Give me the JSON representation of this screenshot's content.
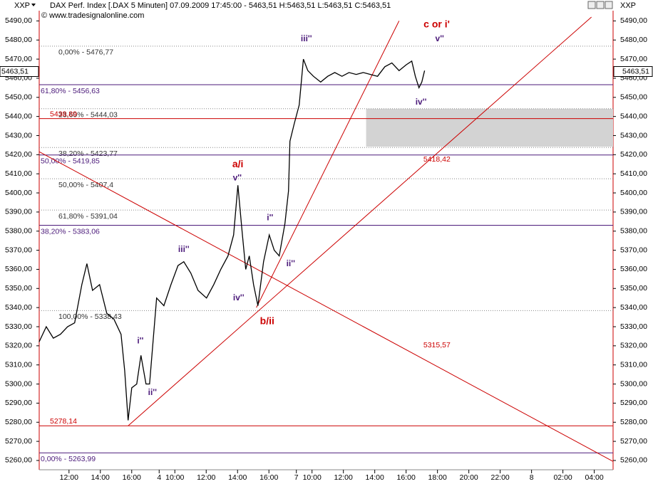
{
  "chart_data": {
    "type": "line",
    "symbol": "XXP",
    "title": "DAX Perf. Index [.DAX 5 Minuten] 07.09.2009 17:45:00 - 5463,51 H:5463,51 L:5463,51 C:5463,51",
    "subtitle": "© www.tradesignalonline.com",
    "last": {
      "value": 5463.51,
      "label": "5463,51"
    },
    "xlim": [
      10.1,
      46.7
    ],
    "ylim": [
      5257,
      5492
    ],
    "xticks": [
      {
        "value": 12,
        "label": "12:00"
      },
      {
        "value": 14,
        "label": "14:00"
      },
      {
        "value": 16,
        "label": "16:00"
      },
      {
        "value": 17.75,
        "label": "4"
      },
      {
        "value": 18.75,
        "label": "10:00"
      },
      {
        "value": 20.75,
        "label": "12:00"
      },
      {
        "value": 22.75,
        "label": "14:00"
      },
      {
        "value": 24.75,
        "label": "16:00"
      },
      {
        "value": 26.5,
        "label": "7"
      },
      {
        "value": 27.5,
        "label": "10:00"
      },
      {
        "value": 29.5,
        "label": "12:00"
      },
      {
        "value": 31.5,
        "label": "14:00"
      },
      {
        "value": 33.5,
        "label": "16:00"
      },
      {
        "value": 35.5,
        "label": "18:00"
      },
      {
        "value": 37.5,
        "label": "20:00"
      },
      {
        "value": 39.5,
        "label": "22:00"
      },
      {
        "value": 41.5,
        "label": "8"
      },
      {
        "value": 43.5,
        "label": "02:00"
      },
      {
        "value": 45.5,
        "label": "04:00"
      }
    ],
    "yticks": [
      {
        "value": 5490,
        "label": "5490,00"
      },
      {
        "value": 5480,
        "label": "5480,00"
      },
      {
        "value": 5470,
        "label": "5470,00"
      },
      {
        "value": 5460,
        "label": "5460,00"
      },
      {
        "value": 5450,
        "label": "5450,00"
      },
      {
        "value": 5440,
        "label": "5440,00"
      },
      {
        "value": 5430,
        "label": "5430,00"
      },
      {
        "value": 5420,
        "label": "5420,00"
      },
      {
        "value": 5410,
        "label": "5410,00"
      },
      {
        "value": 5400,
        "label": "5400,00"
      },
      {
        "value": 5390,
        "label": "5390,00"
      },
      {
        "value": 5380,
        "label": "5380,00"
      },
      {
        "value": 5370,
        "label": "5370,00"
      },
      {
        "value": 5360,
        "label": "5360,00"
      },
      {
        "value": 5350,
        "label": "5350,00"
      },
      {
        "value": 5340,
        "label": "5340,00"
      },
      {
        "value": 5330,
        "label": "5330,00"
      },
      {
        "value": 5320,
        "label": "5320,00"
      },
      {
        "value": 5310,
        "label": "5310,00"
      },
      {
        "value": 5300,
        "label": "5300,00"
      },
      {
        "value": 5290,
        "label": "5290,00"
      },
      {
        "value": 5280,
        "label": "5280,00"
      },
      {
        "value": 5270,
        "label": "5270,00"
      },
      {
        "value": 5260,
        "label": "5260,00"
      }
    ],
    "series": [
      {
        "name": "DAX",
        "color": "#000000",
        "x": [
          10.09,
          10.55,
          11.0,
          11.45,
          11.91,
          12.36,
          12.82,
          13.14,
          13.5,
          13.95,
          14.41,
          14.86,
          15.32,
          15.55,
          15.77,
          16.0,
          16.32,
          16.59,
          16.91,
          17.14,
          17.59,
          18.05,
          18.5,
          18.95,
          19.32,
          19.77,
          20.23,
          20.77,
          21.23,
          21.68,
          22.14,
          22.5,
          22.77,
          23.05,
          23.27,
          23.5,
          23.77,
          24.05,
          24.41,
          24.77,
          25.09,
          25.41,
          25.77,
          26.0,
          26.09,
          26.36,
          26.68,
          26.95,
          27.23,
          27.59,
          28.05,
          28.5,
          28.95,
          29.41,
          29.86,
          30.32,
          30.77,
          31.23,
          31.68,
          32.14,
          32.59,
          33.05,
          33.5,
          33.86,
          34.09,
          34.32,
          34.5,
          34.68
        ],
        "values": [
          5322,
          5330,
          5324,
          5326,
          5330,
          5332,
          5352,
          5363,
          5349,
          5352,
          5337,
          5334,
          5326,
          5307,
          5281,
          5298,
          5300,
          5315,
          5300,
          5300,
          5345,
          5341,
          5352,
          5362,
          5364,
          5358,
          5349,
          5345,
          5352,
          5360,
          5367,
          5378,
          5404,
          5379,
          5360,
          5367,
          5352,
          5341,
          5364,
          5378,
          5370,
          5367,
          5384,
          5401,
          5427,
          5436,
          5446,
          5470,
          5464,
          5461,
          5458,
          5461,
          5463,
          5461,
          5463,
          5462,
          5463,
          5462,
          5461,
          5466,
          5468,
          5464,
          5467,
          5469,
          5461,
          5455,
          5458,
          5464
        ]
      }
    ],
    "zone": {
      "color": "#d3d3d3",
      "x": [
        30.95,
        46.7
      ],
      "y": [
        5424.2,
        5444
      ]
    },
    "levels": [
      {
        "value": 5476.77,
        "label": "0,00% - 5476,77",
        "color": "#888888",
        "style": "dotted"
      },
      {
        "value": 5444.03,
        "label": "23,60% - 5444,03",
        "color": "#888888",
        "style": "dotted"
      },
      {
        "value": 5423.77,
        "label": "38,20% - 5423,77",
        "color": "#888888",
        "style": "dotted"
      },
      {
        "value": 5407.4,
        "label": "50,00% - 5407,4",
        "color": "#888888",
        "style": "dotted"
      },
      {
        "value": 5391.04,
        "label": "61,80% - 5391,04",
        "color": "#888888",
        "style": "dotted"
      },
      {
        "value": 5338.43,
        "label": "100,00% - 5338,43",
        "color": "#888888",
        "style": "dotted"
      },
      {
        "value": 5456.63,
        "label": "61,80% - 5456,63",
        "color": "#4b1a7a",
        "style": "solid"
      },
      {
        "value": 5419.85,
        "label": "50,00% - 5419,85",
        "color": "#4b1a7a",
        "style": "solid"
      },
      {
        "value": 5383.06,
        "label": "38,20% - 5383,06",
        "color": "#4b1a7a",
        "style": "solid"
      },
      {
        "value": 5263.99,
        "label": "0,00% - 5263,99",
        "color": "#4b1a7a",
        "style": "solid"
      },
      {
        "value": 5438.89,
        "label": "5438,89",
        "color": "#cc0000",
        "style": "solid"
      },
      {
        "value": 5278.14,
        "label": "5278,14",
        "color": "#cc0000",
        "style": "solid"
      }
    ],
    "trendlines": [
      {
        "color": "#cc0000",
        "x": [
          15.77,
          45.32
        ],
        "y": [
          5278.14,
          5492
        ]
      },
      {
        "color": "#cc0000",
        "x": [
          23.95,
          33.05
        ],
        "y": [
          5340,
          5490
        ]
      },
      {
        "color": "#cc0000",
        "x": [
          10.09,
          46.68
        ],
        "y": [
          5421.6,
          5259.6
        ]
      }
    ],
    "trend_labels": [
      {
        "text": "5418,42",
        "x": 34.6,
        "y": 5417.5,
        "color": "#cc0000"
      },
      {
        "text": "5315,57",
        "x": 34.6,
        "y": 5320.3,
        "color": "#cc0000"
      }
    ],
    "waves": [
      {
        "text": "c or i'",
        "x": 35.45,
        "y": 5488,
        "color": "#cc0000"
      },
      {
        "text": "v''",
        "x": 35.64,
        "y": 5480.6,
        "color": "#4b1a7a"
      },
      {
        "text": "iii''",
        "x": 27.14,
        "y": 5480.6,
        "color": "#4b1a7a"
      },
      {
        "text": "iv''",
        "x": 34.45,
        "y": 5447.4,
        "color": "#4b1a7a"
      },
      {
        "text": "a/i",
        "x": 22.77,
        "y": 5414.8,
        "color": "#cc0000"
      },
      {
        "text": "v''",
        "x": 22.73,
        "y": 5407.7,
        "color": "#4b1a7a"
      },
      {
        "text": "i''",
        "x": 24.82,
        "y": 5386.8,
        "color": "#4b1a7a"
      },
      {
        "text": "iii''",
        "x": 19.32,
        "y": 5370.3,
        "color": "#4b1a7a"
      },
      {
        "text": "ii''",
        "x": 26.14,
        "y": 5362.8,
        "color": "#4b1a7a"
      },
      {
        "text": "iv''",
        "x": 22.82,
        "y": 5344.9,
        "color": "#4b1a7a"
      },
      {
        "text": "b/ii",
        "x": 24.64,
        "y": 5332.6,
        "color": "#cc0000"
      },
      {
        "text": "i''",
        "x": 16.55,
        "y": 5322.5,
        "color": "#4b1a7a"
      },
      {
        "text": "ii''",
        "x": 17.32,
        "y": 5295.5,
        "color": "#4b1a7a"
      }
    ]
  }
}
